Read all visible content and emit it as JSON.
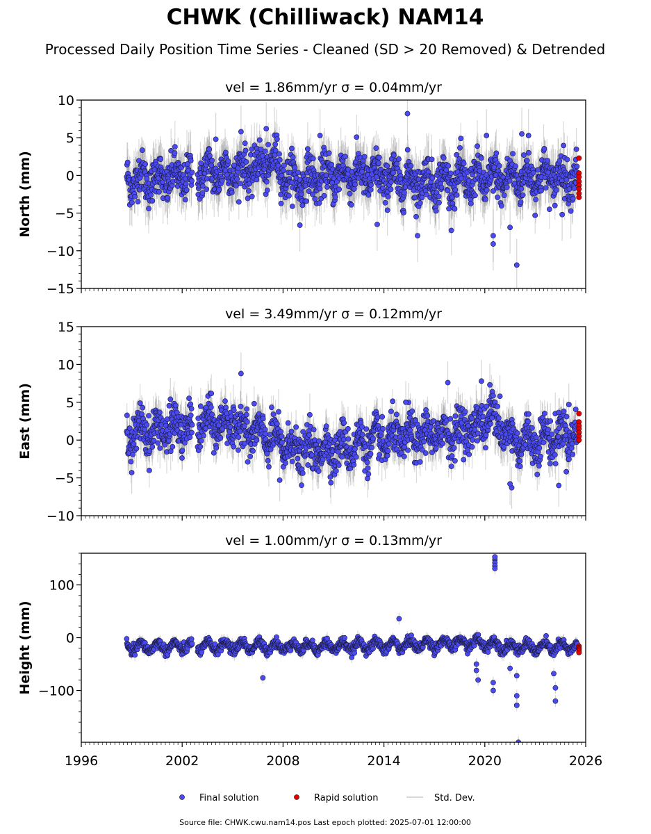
{
  "figure": {
    "title": "CHWK (Chilliwack) NAM14",
    "subtitle": "Processed Daily Position Time Series - Cleaned (SD > 20 Removed) & Detrended",
    "footer": "Source file: CHWK.cwu.nam14.pos  Last epoch plotted: 2025-07-01 12:00:00",
    "legend": [
      {
        "label": "Final solution",
        "color": "#4a4af0",
        "marker": "circle"
      },
      {
        "label": "Rapid solution",
        "color": "#e00000",
        "marker": "circle"
      },
      {
        "label": "Std. Dev.",
        "color": "#cccccc",
        "marker": "line"
      }
    ]
  },
  "chart_data": [
    {
      "type": "scatter",
      "title_prefix": "vel = 1.86mm/yr",
      "sigma_label": "σ = 0.04mm/yr",
      "ylabel": "North (mm)",
      "xlim": [
        1996,
        2026
      ],
      "ylim": [
        -15,
        10
      ],
      "yticks": [
        -15,
        -10,
        -5,
        0,
        5,
        10
      ],
      "show_xticklabels": false,
      "data_start": 1998.7,
      "data_end": 2025.5,
      "series": [
        {
          "name": "Final solution",
          "color": "#4a4af0",
          "profile": {
            "x": [
              1998.7,
              2001,
              2003.0,
              2005,
              2006.5,
              2007.5,
              2008.5,
              2012,
              2016,
              2020,
              2024,
              2025.5
            ],
            "y": [
              -0.5,
              -0.5,
              0.2,
              0.5,
              1.0,
              1.8,
              -0.8,
              0.2,
              -0.8,
              -0.5,
              -0.2,
              0.0
            ]
          },
          "spread": 1.8,
          "err": 2.5,
          "gaps": [
            [
              2002.6,
              2002.9
            ]
          ],
          "outliers": [
            [
              2015.4,
              8.2
            ],
            [
              2016.0,
              -8.0
            ],
            [
              2020.5,
              -8.0
            ],
            [
              2020.5,
              -9.1
            ],
            [
              2021.5,
              -6.9
            ],
            [
              2021.9,
              -11.9
            ],
            [
              2004.0,
              4.8
            ],
            [
              2005.5,
              5.8
            ],
            [
              2007.0,
              6.2
            ],
            [
              2010.2,
              5.3
            ],
            [
              2020.1,
              5.3
            ],
            [
              2022.2,
              5.5
            ],
            [
              2022.6,
              5.3
            ],
            [
              2009.0,
              -6.6
            ],
            [
              2013.6,
              -6.5
            ],
            [
              2024.6,
              -5.2
            ]
          ]
        },
        {
          "name": "Rapid solution",
          "color": "#e00000",
          "points": [
            [
              2025.6,
              2.3
            ],
            [
              2025.6,
              0.3
            ],
            [
              2025.6,
              -0.2
            ],
            [
              2025.6,
              -0.8
            ],
            [
              2025.6,
              -1.3
            ],
            [
              2025.6,
              -1.8
            ],
            [
              2025.6,
              -2.4
            ],
            [
              2025.6,
              -2.9
            ]
          ]
        }
      ]
    },
    {
      "type": "scatter",
      "title_prefix": "vel = 3.49mm/yr",
      "sigma_label": "σ = 0.12mm/yr",
      "ylabel": "East (mm)",
      "xlim": [
        1996,
        2026
      ],
      "ylim": [
        -10,
        15
      ],
      "yticks": [
        -10,
        -5,
        0,
        5,
        10,
        15
      ],
      "show_xticklabels": false,
      "data_start": 1998.7,
      "data_end": 2025.5,
      "series": [
        {
          "name": "Final solution",
          "color": "#4a4af0",
          "profile": {
            "x": [
              1998.7,
              2002,
              2003.5,
              2005,
              2007,
              2009,
              2011,
              2014,
              2016,
              2018,
              2019.5,
              2020.5,
              2021.5,
              2023,
              2025.5
            ],
            "y": [
              1.0,
              1.5,
              2.2,
              2.0,
              0.5,
              -1.5,
              -1.2,
              0.0,
              0.5,
              1.0,
              1.8,
              3.5,
              0.0,
              0.0,
              1.0
            ]
          },
          "spread": 1.8,
          "err": 2.0,
          "gaps": [
            [
              2002.6,
              2002.9
            ]
          ],
          "outliers": [
            [
              2005.5,
              8.8
            ],
            [
              2019.8,
              7.8
            ],
            [
              2017.8,
              7.6
            ],
            [
              2020.3,
              7.3
            ],
            [
              1999.0,
              -4.3
            ],
            [
              2001.3,
              5.4
            ],
            [
              2015.3,
              5.0
            ],
            [
              2021.6,
              -6.3
            ],
            [
              2021.5,
              -5.8
            ],
            [
              2024.4,
              -6.0
            ],
            [
              2025.0,
              4.7
            ],
            [
              2007.8,
              -5.3
            ],
            [
              2020.9,
              5.8
            ]
          ]
        },
        {
          "name": "Rapid solution",
          "color": "#e00000",
          "points": [
            [
              2025.6,
              3.5
            ],
            [
              2025.6,
              2.4
            ],
            [
              2025.6,
              1.9
            ],
            [
              2025.6,
              1.5
            ],
            [
              2025.6,
              1.0
            ],
            [
              2025.6,
              0.5
            ],
            [
              2025.6,
              0.0
            ]
          ]
        }
      ]
    },
    {
      "type": "scatter",
      "title_prefix": "vel = 1.00mm/yr",
      "sigma_label": "σ = 0.13mm/yr",
      "ylabel": "Height (mm)",
      "xlim": [
        1996,
        2026
      ],
      "ylim": [
        -198,
        160
      ],
      "yticks": [
        -100,
        0,
        100
      ],
      "show_xticklabels": true,
      "xticks": [
        1996,
        2002,
        2008,
        2014,
        2020,
        2026
      ],
      "data_start": 1998.7,
      "data_end": 2025.5,
      "series": [
        {
          "name": "Final solution",
          "color": "#4a4af0",
          "profile": {
            "x": [
              1998.7,
              2005,
              2010,
              2015,
              2019.5,
              2020.5,
              2021.5,
              2025.5
            ],
            "y": [
              -18,
              -16,
              -17,
              -14,
              -10,
              -12,
              -18,
              -18
            ]
          },
          "seasonal": 8,
          "spread": 6,
          "err": 8,
          "gaps": [
            [
              2002.6,
              2002.9
            ]
          ],
          "outliers": [
            [
              2014.9,
              36
            ],
            [
              2006.8,
              -76
            ],
            [
              2019.5,
              -50
            ],
            [
              2019.5,
              -62
            ],
            [
              2019.6,
              -80
            ],
            [
              2020.5,
              -85
            ],
            [
              2020.5,
              -100
            ],
            [
              2020.6,
              148
            ],
            [
              2020.6,
              142
            ],
            [
              2020.6,
              136
            ],
            [
              2020.6,
              131
            ],
            [
              2020.6,
              153
            ],
            [
              2021.9,
              -110
            ],
            [
              2021.9,
              -128
            ],
            [
              2021.9,
              -72
            ],
            [
              2022.0,
              -198
            ],
            [
              2024.1,
              -68
            ],
            [
              2024.2,
              -95
            ],
            [
              2024.2,
              -120
            ],
            [
              2021.5,
              -58
            ]
          ]
        },
        {
          "name": "Rapid solution",
          "color": "#e00000",
          "points": [
            [
              2025.6,
              -16
            ],
            [
              2025.6,
              -19
            ],
            [
              2025.6,
              -22
            ],
            [
              2025.6,
              -25
            ],
            [
              2025.6,
              -28
            ]
          ]
        }
      ]
    }
  ]
}
